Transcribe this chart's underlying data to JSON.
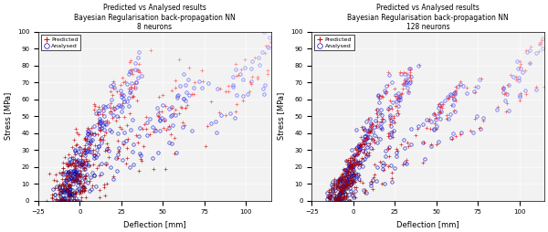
{
  "left_title": "Predicted vs Analysed results\nBayesian Regularisation back-propagation NN\n8 neurons",
  "right_title": "Predicted vs Analysed results\nBayesian Regularisation back-propagation NN\n128 neurons",
  "xlabel": "Deflection [mm]",
  "ylabel": "Stress [MPa]",
  "xlim": [
    -25,
    115
  ],
  "ylim": [
    0,
    100
  ],
  "xticks": [
    -25,
    0,
    25,
    50,
    75,
    100
  ],
  "yticks": [
    0,
    10,
    20,
    30,
    40,
    50,
    60,
    70,
    80,
    90,
    100
  ],
  "bg_color": "#f0f0f0",
  "grid_color": "#ffffff",
  "title_fontsize": 5.5,
  "label_fontsize": 6,
  "tick_fontsize": 5
}
